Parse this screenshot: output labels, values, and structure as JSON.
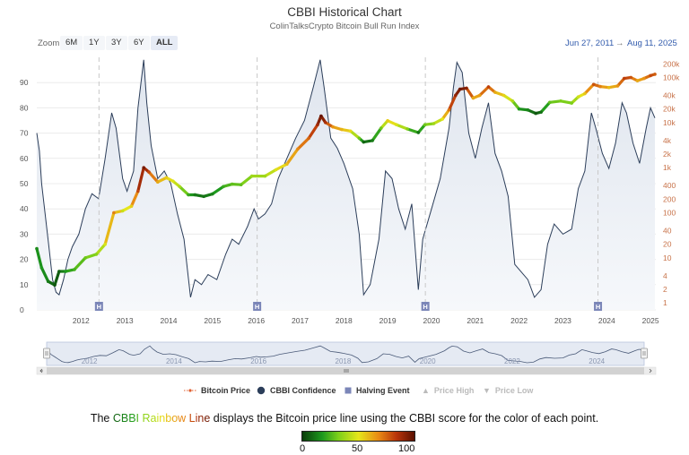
{
  "header": {
    "title": "CBBI Historical Chart",
    "subtitle": "ColinTalksCrypto Bitcoin Bull Run Index"
  },
  "zoom": {
    "label": "Zoom",
    "buttons": [
      "6M",
      "1Y",
      "3Y",
      "6Y",
      "ALL"
    ],
    "active": "ALL"
  },
  "range": {
    "from": "Jun 27, 2011",
    "arrow": "→",
    "to": "Aug 11, 2025"
  },
  "legend": {
    "price": "Bitcoin Price",
    "confidence": "CBBI Confidence",
    "halving": "Halving Event",
    "high": "Price High",
    "low": "Price Low"
  },
  "caption": {
    "prefix": "The ",
    "rainbow": [
      "C",
      "B",
      "B",
      "I",
      " ",
      "R",
      "a",
      "i",
      "n",
      "b",
      "o",
      "w",
      " ",
      "L",
      "i",
      "n",
      "e"
    ],
    "suffix": " displays the Bitcoin price line using the CBBI score for the color of each point."
  },
  "gradient": {
    "min_label": "0",
    "mid_label": "50",
    "max_label": "100"
  },
  "colors": {
    "confidence_line": "#2c3e5a",
    "area_fill": "#e8ecf1",
    "halving_marker": "#7b86b8",
    "right_axis_text": "#c8734a",
    "navigator_fill": "#cfd8ea"
  },
  "chart_data": {
    "type": "line",
    "x_range": [
      "Jun 27, 2011",
      "Aug 11, 2025"
    ],
    "left_axis": {
      "ticks": [
        0,
        10,
        20,
        30,
        40,
        50,
        60,
        70,
        80,
        90
      ],
      "ylim": [
        0,
        100
      ]
    },
    "right_axis": {
      "scale": "log",
      "ticks": [
        1,
        2,
        4,
        10,
        20,
        40,
        100,
        200,
        400,
        1000,
        2000,
        4000,
        10000,
        20000,
        40000,
        100000,
        200000
      ],
      "tick_labels": [
        "1",
        "2",
        "4",
        "10",
        "20",
        "40",
        "100",
        "200",
        "400",
        "1k",
        "2k",
        "4k",
        "10k",
        "20k",
        "40k",
        "100k",
        "200k"
      ],
      "ylim": [
        0.7,
        280000
      ]
    },
    "x_ticks": [
      "2012",
      "2013",
      "2014",
      "2015",
      "2016",
      "2017",
      "2018",
      "2019",
      "2020",
      "2021",
      "2022",
      "2023",
      "2024",
      "2025"
    ],
    "navigator_ticks": [
      "2012",
      "2014",
      "2016",
      "2018",
      "2020",
      "2022",
      "2024"
    ],
    "halvings": [
      2012.91,
      2016.52,
      2020.36,
      2024.3
    ],
    "halving_label": "H",
    "series": [
      {
        "legend": "confidence",
        "points": [
          [
            2011.49,
            70
          ],
          [
            2011.55,
            63
          ],
          [
            2011.6,
            50
          ],
          [
            2011.68,
            38
          ],
          [
            2011.76,
            26
          ],
          [
            2011.85,
            12
          ],
          [
            2011.93,
            7
          ],
          [
            2012.0,
            6
          ],
          [
            2012.1,
            12
          ],
          [
            2012.2,
            20
          ],
          [
            2012.3,
            25
          ],
          [
            2012.45,
            30
          ],
          [
            2012.6,
            40
          ],
          [
            2012.75,
            46
          ],
          [
            2012.9,
            44
          ],
          [
            2013.05,
            60
          ],
          [
            2013.2,
            78
          ],
          [
            2013.3,
            72
          ],
          [
            2013.45,
            52
          ],
          [
            2013.55,
            47
          ],
          [
            2013.7,
            55
          ],
          [
            2013.8,
            80
          ],
          [
            2013.93,
            99
          ],
          [
            2014.0,
            82
          ],
          [
            2014.1,
            65
          ],
          [
            2014.25,
            52
          ],
          [
            2014.4,
            55
          ],
          [
            2014.55,
            50
          ],
          [
            2014.7,
            38
          ],
          [
            2014.85,
            28
          ],
          [
            2015.0,
            5
          ],
          [
            2015.1,
            12
          ],
          [
            2015.25,
            10
          ],
          [
            2015.4,
            14
          ],
          [
            2015.6,
            12
          ],
          [
            2015.8,
            22
          ],
          [
            2015.95,
            28
          ],
          [
            2016.1,
            26
          ],
          [
            2016.3,
            33
          ],
          [
            2016.45,
            40
          ],
          [
            2016.55,
            36
          ],
          [
            2016.7,
            38
          ],
          [
            2016.85,
            42
          ],
          [
            2017.0,
            52
          ],
          [
            2017.2,
            60
          ],
          [
            2017.4,
            68
          ],
          [
            2017.6,
            75
          ],
          [
            2017.8,
            88
          ],
          [
            2017.96,
            99
          ],
          [
            2018.05,
            88
          ],
          [
            2018.2,
            68
          ],
          [
            2018.35,
            64
          ],
          [
            2018.5,
            58
          ],
          [
            2018.7,
            48
          ],
          [
            2018.85,
            30
          ],
          [
            2018.95,
            6
          ],
          [
            2019.1,
            10
          ],
          [
            2019.3,
            28
          ],
          [
            2019.45,
            55
          ],
          [
            2019.6,
            52
          ],
          [
            2019.75,
            40
          ],
          [
            2019.9,
            32
          ],
          [
            2020.05,
            42
          ],
          [
            2020.2,
            8
          ],
          [
            2020.3,
            28
          ],
          [
            2020.5,
            40
          ],
          [
            2020.7,
            52
          ],
          [
            2020.9,
            72
          ],
          [
            2021.0,
            88
          ],
          [
            2021.08,
            98
          ],
          [
            2021.2,
            94
          ],
          [
            2021.35,
            70
          ],
          [
            2021.5,
            60
          ],
          [
            2021.65,
            72
          ],
          [
            2021.8,
            82
          ],
          [
            2021.95,
            62
          ],
          [
            2022.1,
            55
          ],
          [
            2022.25,
            45
          ],
          [
            2022.4,
            18
          ],
          [
            2022.55,
            15
          ],
          [
            2022.7,
            12
          ],
          [
            2022.85,
            5
          ],
          [
            2023.0,
            8
          ],
          [
            2023.15,
            26
          ],
          [
            2023.3,
            34
          ],
          [
            2023.5,
            30
          ],
          [
            2023.7,
            32
          ],
          [
            2023.85,
            48
          ],
          [
            2024.0,
            55
          ],
          [
            2024.15,
            78
          ],
          [
            2024.25,
            72
          ],
          [
            2024.4,
            62
          ],
          [
            2024.55,
            56
          ],
          [
            2024.7,
            66
          ],
          [
            2024.85,
            82
          ],
          [
            2024.95,
            78
          ],
          [
            2025.1,
            66
          ],
          [
            2025.25,
            58
          ],
          [
            2025.4,
            72
          ],
          [
            2025.5,
            80
          ],
          [
            2025.6,
            76
          ]
        ]
      },
      {
        "legend": "price",
        "color_by": "cbbi_score",
        "points": [
          [
            2011.49,
            16,
            15
          ],
          [
            2011.6,
            6,
            18
          ],
          [
            2011.75,
            3,
            12
          ],
          [
            2011.9,
            2.5,
            5
          ],
          [
            2012.0,
            5,
            7
          ],
          [
            2012.15,
            5,
            18
          ],
          [
            2012.35,
            5.5,
            24
          ],
          [
            2012.6,
            10,
            30
          ],
          [
            2012.85,
            12,
            34
          ],
          [
            2013.05,
            20,
            48
          ],
          [
            2013.25,
            100,
            70
          ],
          [
            2013.45,
            110,
            45
          ],
          [
            2013.65,
            140,
            55
          ],
          [
            2013.8,
            300,
            80
          ],
          [
            2013.93,
            1000,
            95
          ],
          [
            2014.05,
            800,
            80
          ],
          [
            2014.25,
            480,
            62
          ],
          [
            2014.45,
            600,
            55
          ],
          [
            2014.6,
            500,
            48
          ],
          [
            2014.75,
            380,
            40
          ],
          [
            2014.95,
            250,
            22
          ],
          [
            2015.1,
            250,
            12
          ],
          [
            2015.3,
            230,
            10
          ],
          [
            2015.5,
            260,
            14
          ],
          [
            2015.75,
            380,
            22
          ],
          [
            2015.95,
            430,
            28
          ],
          [
            2016.15,
            420,
            28
          ],
          [
            2016.4,
            650,
            38
          ],
          [
            2016.7,
            650,
            38
          ],
          [
            2016.95,
            900,
            48
          ],
          [
            2017.2,
            1200,
            58
          ],
          [
            2017.45,
            2600,
            68
          ],
          [
            2017.7,
            4500,
            75
          ],
          [
            2017.9,
            9000,
            88
          ],
          [
            2017.98,
            14000,
            98
          ],
          [
            2018.08,
            10000,
            86
          ],
          [
            2018.25,
            8000,
            66
          ],
          [
            2018.45,
            7000,
            60
          ],
          [
            2018.65,
            6500,
            52
          ],
          [
            2018.85,
            4500,
            30
          ],
          [
            2018.95,
            3700,
            8
          ],
          [
            2019.15,
            4000,
            12
          ],
          [
            2019.35,
            7500,
            30
          ],
          [
            2019.5,
            11000,
            55
          ],
          [
            2019.7,
            9000,
            48
          ],
          [
            2019.95,
            7200,
            34
          ],
          [
            2020.2,
            6000,
            10
          ],
          [
            2020.35,
            9000,
            30
          ],
          [
            2020.55,
            9500,
            38
          ],
          [
            2020.75,
            12000,
            50
          ],
          [
            2020.9,
            19000,
            72
          ],
          [
            2021.05,
            40000,
            90
          ],
          [
            2021.15,
            55000,
            96
          ],
          [
            2021.3,
            58000,
            92
          ],
          [
            2021.45,
            35000,
            62
          ],
          [
            2021.6,
            40000,
            64
          ],
          [
            2021.8,
            62000,
            82
          ],
          [
            2021.95,
            47000,
            62
          ],
          [
            2022.15,
            40000,
            54
          ],
          [
            2022.35,
            30000,
            40
          ],
          [
            2022.5,
            20000,
            18
          ],
          [
            2022.7,
            19000,
            14
          ],
          [
            2022.88,
            16000,
            5
          ],
          [
            2023.0,
            17000,
            10
          ],
          [
            2023.2,
            28000,
            28
          ],
          [
            2023.45,
            30000,
            32
          ],
          [
            2023.7,
            27000,
            32
          ],
          [
            2023.85,
            37000,
            46
          ],
          [
            2024.0,
            44000,
            56
          ],
          [
            2024.2,
            70000,
            78
          ],
          [
            2024.35,
            63000,
            70
          ],
          [
            2024.55,
            60000,
            58
          ],
          [
            2024.75,
            65000,
            66
          ],
          [
            2024.9,
            95000,
            82
          ],
          [
            2025.05,
            100000,
            78
          ],
          [
            2025.2,
            85000,
            62
          ],
          [
            2025.35,
            95000,
            66
          ],
          [
            2025.5,
            110000,
            80
          ],
          [
            2025.6,
            118000,
            76
          ]
        ]
      }
    ]
  }
}
